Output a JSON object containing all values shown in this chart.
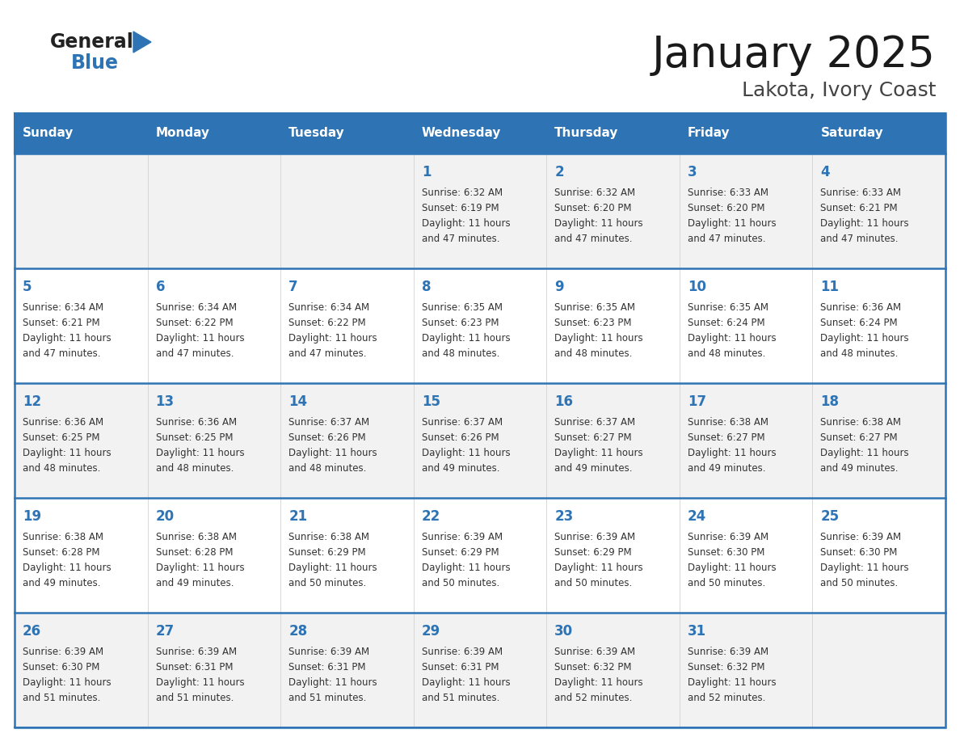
{
  "title": "January 2025",
  "subtitle": "Lakota, Ivory Coast",
  "header_color": "#2E74B5",
  "header_text_color": "#FFFFFF",
  "cell_bg_light": "#F2F2F2",
  "cell_bg_white": "#FFFFFF",
  "text_color": "#333333",
  "day_num_color": "#2E74B5",
  "border_color": "#2E74B5",
  "days_of_week": [
    "Sunday",
    "Monday",
    "Tuesday",
    "Wednesday",
    "Thursday",
    "Friday",
    "Saturday"
  ],
  "calendar_data": [
    [
      {
        "day": 0,
        "sunrise": "",
        "sunset": "",
        "daylight_hours": 0,
        "daylight_mins": 0
      },
      {
        "day": 0,
        "sunrise": "",
        "sunset": "",
        "daylight_hours": 0,
        "daylight_mins": 0
      },
      {
        "day": 0,
        "sunrise": "",
        "sunset": "",
        "daylight_hours": 0,
        "daylight_mins": 0
      },
      {
        "day": 1,
        "sunrise": "6:32 AM",
        "sunset": "6:19 PM",
        "daylight_hours": 11,
        "daylight_mins": 47
      },
      {
        "day": 2,
        "sunrise": "6:32 AM",
        "sunset": "6:20 PM",
        "daylight_hours": 11,
        "daylight_mins": 47
      },
      {
        "day": 3,
        "sunrise": "6:33 AM",
        "sunset": "6:20 PM",
        "daylight_hours": 11,
        "daylight_mins": 47
      },
      {
        "day": 4,
        "sunrise": "6:33 AM",
        "sunset": "6:21 PM",
        "daylight_hours": 11,
        "daylight_mins": 47
      }
    ],
    [
      {
        "day": 5,
        "sunrise": "6:34 AM",
        "sunset": "6:21 PM",
        "daylight_hours": 11,
        "daylight_mins": 47
      },
      {
        "day": 6,
        "sunrise": "6:34 AM",
        "sunset": "6:22 PM",
        "daylight_hours": 11,
        "daylight_mins": 47
      },
      {
        "day": 7,
        "sunrise": "6:34 AM",
        "sunset": "6:22 PM",
        "daylight_hours": 11,
        "daylight_mins": 47
      },
      {
        "day": 8,
        "sunrise": "6:35 AM",
        "sunset": "6:23 PM",
        "daylight_hours": 11,
        "daylight_mins": 48
      },
      {
        "day": 9,
        "sunrise": "6:35 AM",
        "sunset": "6:23 PM",
        "daylight_hours": 11,
        "daylight_mins": 48
      },
      {
        "day": 10,
        "sunrise": "6:35 AM",
        "sunset": "6:24 PM",
        "daylight_hours": 11,
        "daylight_mins": 48
      },
      {
        "day": 11,
        "sunrise": "6:36 AM",
        "sunset": "6:24 PM",
        "daylight_hours": 11,
        "daylight_mins": 48
      }
    ],
    [
      {
        "day": 12,
        "sunrise": "6:36 AM",
        "sunset": "6:25 PM",
        "daylight_hours": 11,
        "daylight_mins": 48
      },
      {
        "day": 13,
        "sunrise": "6:36 AM",
        "sunset": "6:25 PM",
        "daylight_hours": 11,
        "daylight_mins": 48
      },
      {
        "day": 14,
        "sunrise": "6:37 AM",
        "sunset": "6:26 PM",
        "daylight_hours": 11,
        "daylight_mins": 48
      },
      {
        "day": 15,
        "sunrise": "6:37 AM",
        "sunset": "6:26 PM",
        "daylight_hours": 11,
        "daylight_mins": 49
      },
      {
        "day": 16,
        "sunrise": "6:37 AM",
        "sunset": "6:27 PM",
        "daylight_hours": 11,
        "daylight_mins": 49
      },
      {
        "day": 17,
        "sunrise": "6:38 AM",
        "sunset": "6:27 PM",
        "daylight_hours": 11,
        "daylight_mins": 49
      },
      {
        "day": 18,
        "sunrise": "6:38 AM",
        "sunset": "6:27 PM",
        "daylight_hours": 11,
        "daylight_mins": 49
      }
    ],
    [
      {
        "day": 19,
        "sunrise": "6:38 AM",
        "sunset": "6:28 PM",
        "daylight_hours": 11,
        "daylight_mins": 49
      },
      {
        "day": 20,
        "sunrise": "6:38 AM",
        "sunset": "6:28 PM",
        "daylight_hours": 11,
        "daylight_mins": 49
      },
      {
        "day": 21,
        "sunrise": "6:38 AM",
        "sunset": "6:29 PM",
        "daylight_hours": 11,
        "daylight_mins": 50
      },
      {
        "day": 22,
        "sunrise": "6:39 AM",
        "sunset": "6:29 PM",
        "daylight_hours": 11,
        "daylight_mins": 50
      },
      {
        "day": 23,
        "sunrise": "6:39 AM",
        "sunset": "6:29 PM",
        "daylight_hours": 11,
        "daylight_mins": 50
      },
      {
        "day": 24,
        "sunrise": "6:39 AM",
        "sunset": "6:30 PM",
        "daylight_hours": 11,
        "daylight_mins": 50
      },
      {
        "day": 25,
        "sunrise": "6:39 AM",
        "sunset": "6:30 PM",
        "daylight_hours": 11,
        "daylight_mins": 50
      }
    ],
    [
      {
        "day": 26,
        "sunrise": "6:39 AM",
        "sunset": "6:30 PM",
        "daylight_hours": 11,
        "daylight_mins": 51
      },
      {
        "day": 27,
        "sunrise": "6:39 AM",
        "sunset": "6:31 PM",
        "daylight_hours": 11,
        "daylight_mins": 51
      },
      {
        "day": 28,
        "sunrise": "6:39 AM",
        "sunset": "6:31 PM",
        "daylight_hours": 11,
        "daylight_mins": 51
      },
      {
        "day": 29,
        "sunrise": "6:39 AM",
        "sunset": "6:31 PM",
        "daylight_hours": 11,
        "daylight_mins": 51
      },
      {
        "day": 30,
        "sunrise": "6:39 AM",
        "sunset": "6:32 PM",
        "daylight_hours": 11,
        "daylight_mins": 52
      },
      {
        "day": 31,
        "sunrise": "6:39 AM",
        "sunset": "6:32 PM",
        "daylight_hours": 11,
        "daylight_mins": 52
      },
      {
        "day": 0,
        "sunrise": "",
        "sunset": "",
        "daylight_hours": 0,
        "daylight_mins": 0
      }
    ]
  ],
  "logo_text_general": "General",
  "logo_text_blue": "Blue",
  "logo_color_general": "#222222",
  "logo_color_blue": "#2E74B5",
  "fig_width": 11.88,
  "fig_height": 9.18,
  "dpi": 100
}
